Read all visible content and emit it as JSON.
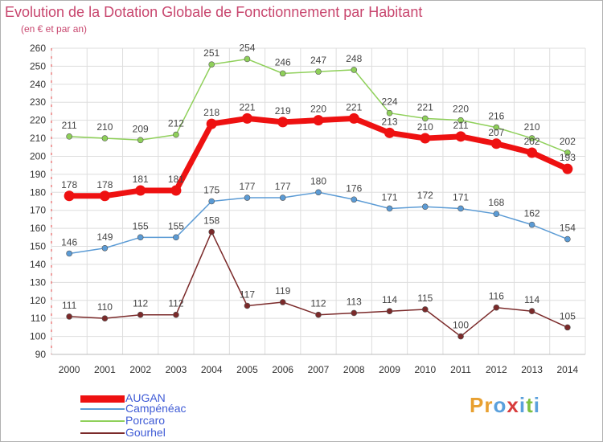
{
  "title": "Evolution de la Dotation Globale de Fonctionnement par Habitant",
  "subtitle": "(en € et par an)",
  "brand": {
    "text": "Proxiti",
    "letters": [
      "P",
      "r",
      "o",
      "x",
      "i",
      "t",
      "i"
    ],
    "colors": [
      "#e8a030",
      "#e8a030",
      "#5aa0dc",
      "#d83c3c",
      "#5aa0dc",
      "#7cc040",
      "#5aa0dc"
    ]
  },
  "chart_data": {
    "type": "line",
    "title": "Evolution de la Dotation Globale de Fonctionnement par Habitant",
    "subtitle": "(en € et par an)",
    "x": [
      "2000",
      "2001",
      "2002",
      "2003",
      "2004",
      "2005",
      "2006",
      "2007",
      "2008",
      "2009",
      "2010",
      "2011",
      "2012",
      "2013",
      "2014"
    ],
    "ylim": [
      90,
      260
    ],
    "yticks": [
      90,
      100,
      110,
      120,
      130,
      140,
      150,
      160,
      170,
      180,
      190,
      200,
      210,
      220,
      230,
      240,
      250,
      260
    ],
    "grid": true,
    "legend_position": "bottom-left",
    "series": [
      {
        "name": "AUGAN",
        "color": "#ee1111",
        "values": [
          178,
          178,
          181,
          181,
          218,
          221,
          219,
          220,
          221,
          213,
          210,
          211,
          207,
          202,
          193
        ]
      },
      {
        "name": "Campénéac",
        "color": "#5b9bd5",
        "values": [
          146,
          149,
          155,
          155,
          175,
          177,
          177,
          180,
          176,
          171,
          172,
          171,
          168,
          162,
          154
        ]
      },
      {
        "name": "Porcaro",
        "color": "#8fd05a",
        "values": [
          211,
          210,
          209,
          212,
          251,
          254,
          246,
          247,
          248,
          224,
          221,
          220,
          216,
          210,
          202
        ]
      },
      {
        "name": "Gourhel",
        "color": "#7b2a2a",
        "values": [
          111,
          110,
          112,
          112,
          158,
          117,
          119,
          112,
          113,
          114,
          115,
          100,
          116,
          114,
          105
        ]
      }
    ]
  }
}
